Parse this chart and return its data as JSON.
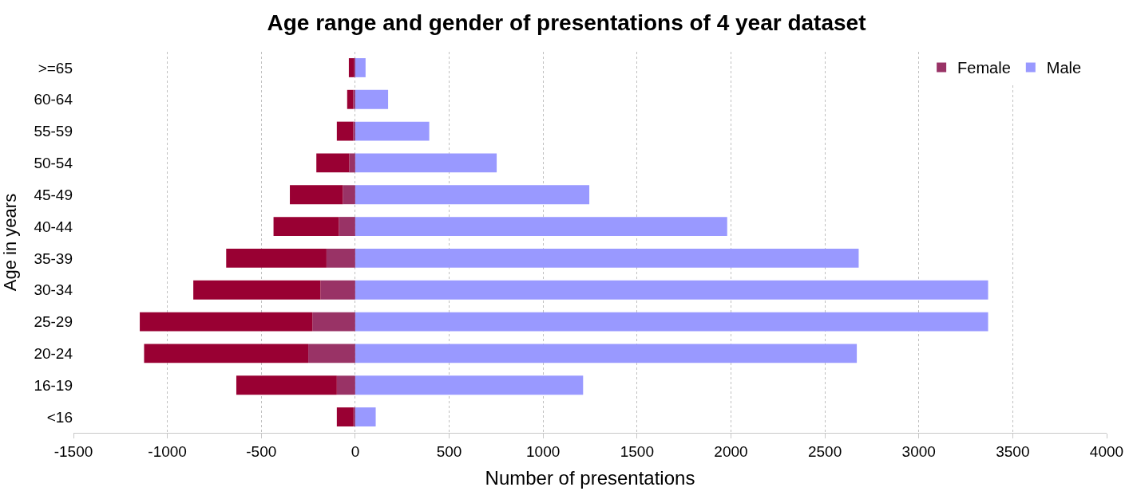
{
  "chart_data": {
    "type": "bar",
    "orientation": "horizontal",
    "stacked": true,
    "title": "Age range and gender of presentations of 4 year dataset",
    "xlabel": "Number of presentations",
    "ylabel": "Age in years",
    "categories": [
      ">=65",
      "60-64",
      "55-59",
      "50-54",
      "45-49",
      "40-44",
      "35-39",
      "30-34",
      "25-29",
      "20-24",
      "16-19",
      "<16"
    ],
    "series": [
      {
        "name": "Female",
        "color": "#993366",
        "values": [
          -8,
          -11,
          -11,
          -32,
          -66,
          -87,
          -153,
          -185,
          -228,
          -250,
          -98,
          -9
        ]
      },
      {
        "color": "#990033",
        "values": [
          -26,
          -32,
          -87,
          -175,
          -282,
          -348,
          -534,
          -677,
          -919,
          -874,
          -535,
          -89
        ]
      },
      {
        "name": "Male",
        "color": "#9999ff",
        "values": [
          55,
          175,
          394,
          753,
          1246,
          1980,
          2680,
          3369,
          3369,
          2670,
          1213,
          109
        ]
      }
    ],
    "xlim": [
      -1500,
      4000
    ],
    "xticks": [
      -1500,
      -1000,
      -500,
      0,
      500,
      1000,
      1500,
      2000,
      2500,
      3000,
      3500,
      4000
    ],
    "grid": "x",
    "legend": "top right"
  }
}
